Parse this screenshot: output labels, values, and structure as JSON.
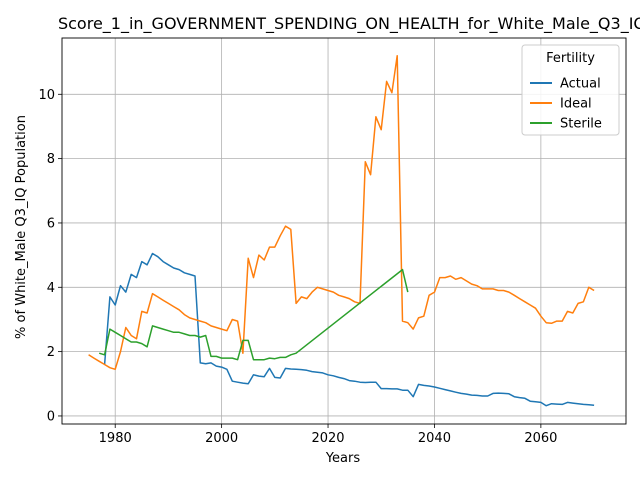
{
  "chart_data": {
    "type": "line",
    "title": "Score_1_in_GOVERNMENT_SPENDING_ON_HEALTH_for_White_Male_Q3_IQ",
    "xlabel": "Years",
    "ylabel": "% of White_Male Q3_IQ Population",
    "xlim": [
      1970,
      2076
    ],
    "ylim": [
      -0.25,
      11.75
    ],
    "xticks": [
      1980,
      2000,
      2020,
      2040,
      2060
    ],
    "yticks": [
      0,
      2,
      4,
      6,
      8,
      10
    ],
    "grid": true,
    "legend": {
      "title": "Fertility",
      "position": "top-right"
    },
    "colors": {
      "Actual": "#1f77b4",
      "Ideal": "#ff7f0e",
      "Sterile": "#2ca02c"
    },
    "series": [
      {
        "name": "Actual",
        "x": [
          1978,
          1979,
          1980,
          1981,
          1982,
          1983,
          1984,
          1985,
          1986,
          1987,
          1988,
          1989,
          1990,
          1991,
          1992,
          1993,
          1994,
          1995,
          1996,
          1997,
          1998,
          1999,
          2000,
          2001,
          2002,
          2003,
          2004,
          2005,
          2006,
          2007,
          2008,
          2009,
          2010,
          2011,
          2012,
          2013,
          2014,
          2015,
          2016,
          2017,
          2018,
          2019,
          2020,
          2021,
          2022,
          2023,
          2024,
          2025,
          2026,
          2027,
          2028,
          2029,
          2030,
          2031,
          2032,
          2033,
          2034,
          2035,
          2036,
          2037,
          2038,
          2039,
          2040,
          2041,
          2042,
          2043,
          2044,
          2045,
          2046,
          2047,
          2048,
          2049,
          2050,
          2051,
          2052,
          2053,
          2054,
          2055,
          2056,
          2057,
          2058,
          2059,
          2060,
          2061,
          2062,
          2063,
          2064,
          2065,
          2066,
          2067,
          2068,
          2069,
          2070
        ],
        "values": [
          1.6,
          3.7,
          3.45,
          4.05,
          3.85,
          4.4,
          4.3,
          4.8,
          4.7,
          5.05,
          4.95,
          4.8,
          4.7,
          4.6,
          4.55,
          4.45,
          4.4,
          4.35,
          1.65,
          1.62,
          1.65,
          1.55,
          1.52,
          1.45,
          1.08,
          1.05,
          1.02,
          1.0,
          1.28,
          1.24,
          1.22,
          1.48,
          1.2,
          1.18,
          1.48,
          1.46,
          1.45,
          1.44,
          1.42,
          1.38,
          1.36,
          1.34,
          1.28,
          1.25,
          1.2,
          1.16,
          1.1,
          1.08,
          1.05,
          1.04,
          1.05,
          1.05,
          0.85,
          0.85,
          0.84,
          0.84,
          0.8,
          0.8,
          0.6,
          0.98,
          0.95,
          0.93,
          0.9,
          0.86,
          0.82,
          0.78,
          0.74,
          0.7,
          0.68,
          0.65,
          0.64,
          0.62,
          0.62,
          0.7,
          0.71,
          0.7,
          0.69,
          0.6,
          0.57,
          0.55,
          0.46,
          0.44,
          0.42,
          0.32,
          0.38,
          0.37,
          0.36,
          0.42,
          0.4,
          0.38,
          0.36,
          0.35,
          0.33
        ]
      },
      {
        "name": "Ideal",
        "x": [
          1975,
          1976,
          1977,
          1978,
          1979,
          1980,
          1981,
          1982,
          1983,
          1984,
          1985,
          1986,
          1987,
          1988,
          1989,
          1990,
          1991,
          1992,
          1993,
          1994,
          1995,
          1996,
          1997,
          1998,
          1999,
          2000,
          2001,
          2002,
          2003,
          2004,
          2005,
          2006,
          2007,
          2008,
          2009,
          2010,
          2011,
          2012,
          2013,
          2014,
          2015,
          2016,
          2017,
          2018,
          2019,
          2020,
          2021,
          2022,
          2023,
          2024,
          2025,
          2026,
          2027,
          2028,
          2029,
          2030,
          2031,
          2032,
          2033,
          2034,
          2035,
          2036,
          2037,
          2038,
          2039,
          2040,
          2041,
          2042,
          2043,
          2044,
          2045,
          2046,
          2047,
          2048,
          2049,
          2050,
          2051,
          2052,
          2053,
          2054,
          2055,
          2056,
          2057,
          2058,
          2059,
          2060,
          2061,
          2062,
          2063,
          2064,
          2065,
          2066,
          2067,
          2068,
          2069,
          2070
        ],
        "values": [
          1.9,
          1.8,
          1.7,
          1.6,
          1.5,
          1.45,
          2.0,
          2.75,
          2.5,
          2.4,
          3.25,
          3.2,
          3.8,
          3.7,
          3.6,
          3.5,
          3.4,
          3.3,
          3.15,
          3.05,
          3.0,
          2.95,
          2.9,
          2.8,
          2.75,
          2.7,
          2.65,
          3.0,
          2.95,
          1.95,
          4.9,
          4.3,
          5.0,
          4.85,
          5.25,
          5.25,
          5.6,
          5.9,
          5.8,
          3.5,
          3.7,
          3.65,
          3.85,
          4.0,
          3.95,
          3.9,
          3.85,
          3.75,
          3.7,
          3.65,
          3.55,
          3.5,
          7.9,
          7.5,
          9.3,
          8.9,
          10.4,
          10.05,
          11.2,
          2.95,
          2.9,
          2.7,
          3.05,
          3.1,
          3.75,
          3.85,
          4.3,
          4.3,
          4.35,
          4.25,
          4.3,
          4.2,
          4.1,
          4.05,
          3.95,
          3.95,
          3.95,
          3.9,
          3.9,
          3.85,
          3.75,
          3.65,
          3.55,
          3.45,
          3.35,
          3.1,
          2.9,
          2.88,
          2.95,
          2.95,
          3.25,
          3.2,
          3.5,
          3.55,
          4.0,
          3.9
        ]
      },
      {
        "name": "Sterile",
        "x": [
          1977,
          1978,
          1979,
          1980,
          1981,
          1982,
          1983,
          1984,
          1985,
          1986,
          1987,
          1988,
          1989,
          1990,
          1991,
          1992,
          1993,
          1994,
          1995,
          1996,
          1997,
          1998,
          1999,
          2000,
          2001,
          2002,
          2003,
          2004,
          2005,
          2006,
          2007,
          2008,
          2009,
          2010,
          2011,
          2012,
          2013,
          2014,
          2034,
          2035
        ],
        "values": [
          1.95,
          1.9,
          2.7,
          2.6,
          2.5,
          2.4,
          2.3,
          2.3,
          2.25,
          2.15,
          2.8,
          2.75,
          2.7,
          2.65,
          2.6,
          2.6,
          2.55,
          2.5,
          2.5,
          2.45,
          2.5,
          1.85,
          1.85,
          1.8,
          1.8,
          1.8,
          1.75,
          2.35,
          2.35,
          1.75,
          1.75,
          1.75,
          1.8,
          1.78,
          1.82,
          1.82,
          1.9,
          1.95,
          4.55,
          3.85
        ]
      }
    ]
  }
}
